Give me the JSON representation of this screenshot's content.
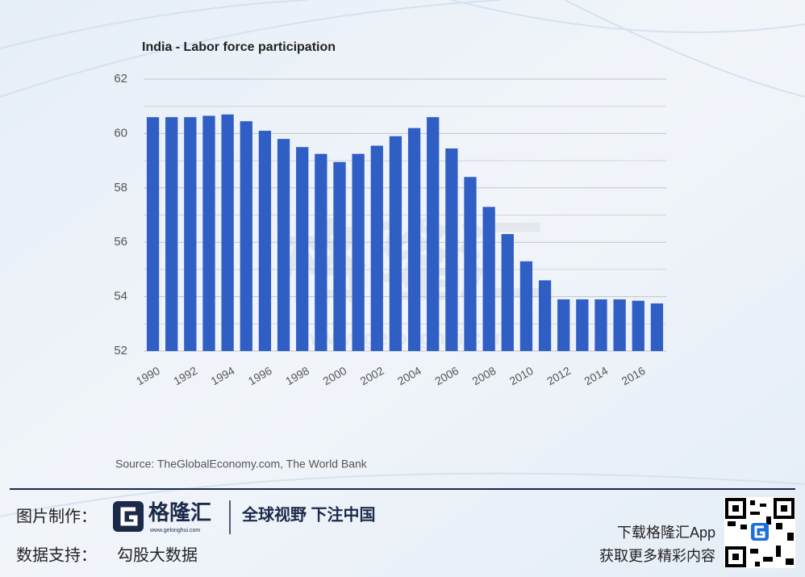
{
  "chart_data": {
    "type": "bar",
    "title": "India - Labor force participation",
    "source": "Source: TheGlobalEconomy.com, The World Bank",
    "categories": [
      "1990",
      null,
      "1992",
      null,
      "1994",
      null,
      "1996",
      null,
      "1998",
      null,
      "2000",
      null,
      "2002",
      null,
      "2004",
      null,
      "2006",
      null,
      "2008",
      null,
      "2010",
      null,
      "2012",
      null,
      "2014",
      null,
      "2016",
      null
    ],
    "values": [
      60.6,
      60.6,
      60.6,
      60.65,
      60.7,
      60.45,
      60.1,
      59.8,
      59.5,
      59.25,
      58.95,
      59.25,
      59.55,
      59.9,
      60.2,
      60.6,
      59.45,
      58.4,
      57.3,
      56.3,
      55.3,
      54.6,
      53.9,
      53.9,
      53.9,
      53.9,
      53.85,
      53.75
    ],
    "color": "#2f5ec4",
    "ylim": [
      52,
      62
    ],
    "yticks": [
      52,
      54,
      56,
      58,
      60,
      62
    ],
    "minor_yticks": [
      53,
      55,
      57,
      59,
      61
    ],
    "grid": true
  },
  "watermark": {
    "name": "格隆汇",
    "url": "www.gelonghui.com"
  },
  "footer": {
    "made_by_label": "图片制作：",
    "logo_name": "格隆汇",
    "logo_url": "www.gelonghui.com",
    "slogan": "全球视野 下注中国",
    "data_label": "数据支持：",
    "data_source": "勾股大数据",
    "app_line1": "下载格隆汇App",
    "app_line2": "获取更多精彩内容"
  }
}
